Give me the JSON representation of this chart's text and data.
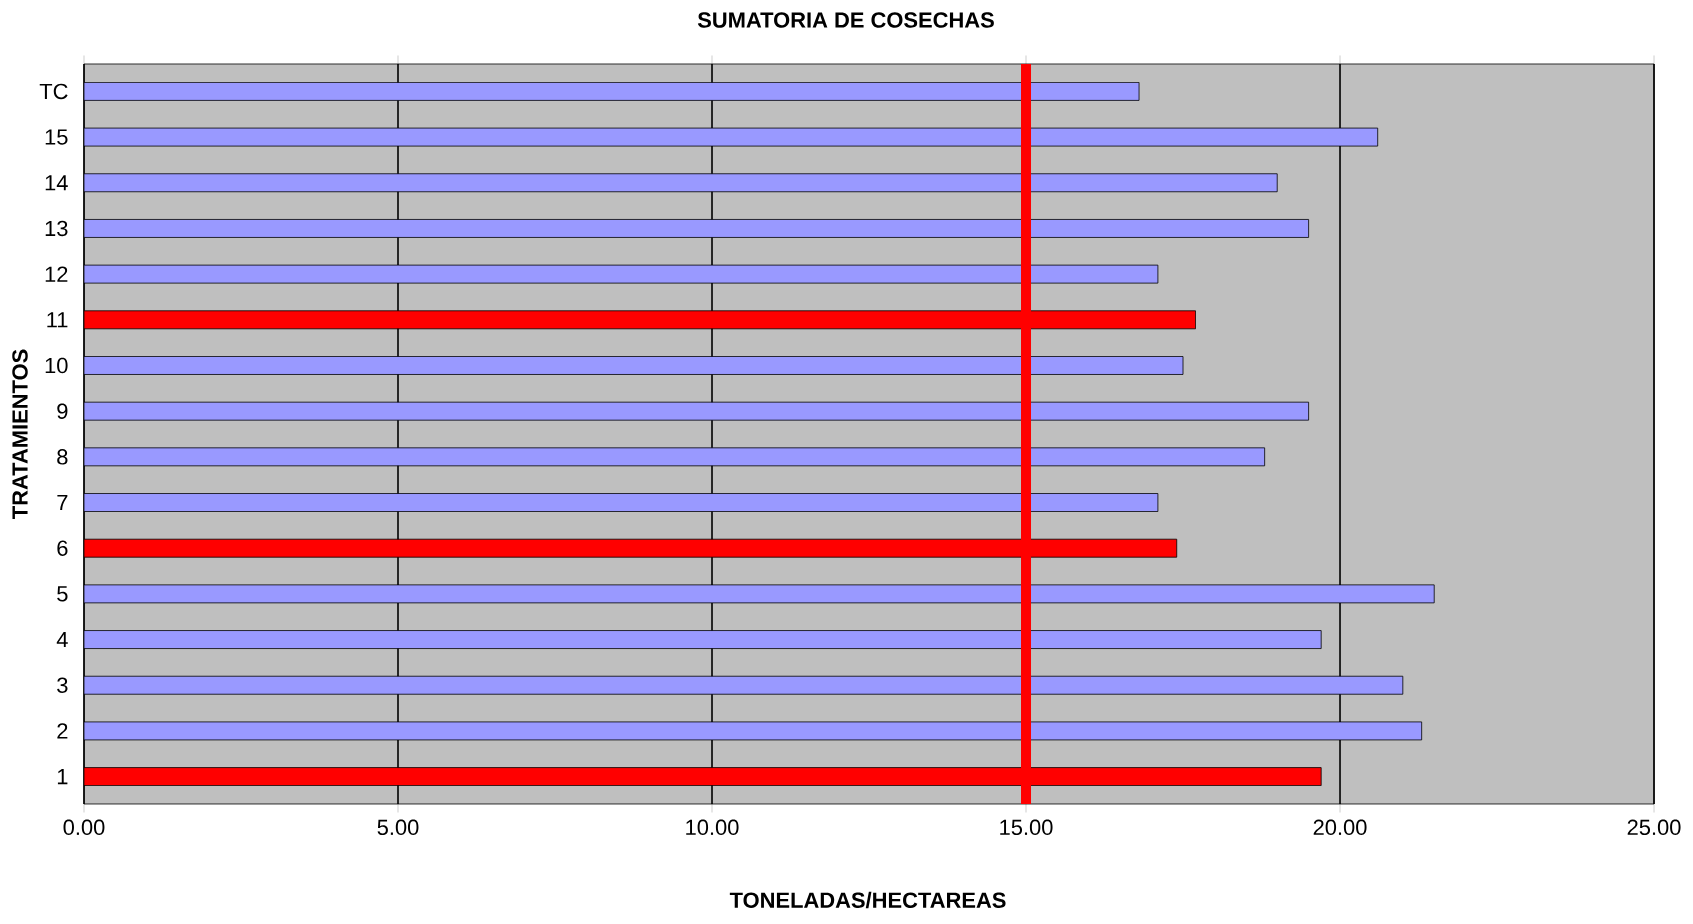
{
  "chart_data": {
    "type": "bar",
    "orientation": "horizontal",
    "title": "SUMATORIA DE COSECHAS",
    "xlabel": "TONELADAS/HECTAREAS",
    "ylabel": "TRATAMIENTOS",
    "categories": [
      "TC",
      "15",
      "14",
      "13",
      "12",
      "11",
      "10",
      "9",
      "8",
      "7",
      "6",
      "5",
      "4",
      "3",
      "2",
      "1"
    ],
    "values": [
      16.8,
      20.6,
      19.0,
      19.5,
      17.1,
      17.7,
      17.5,
      19.5,
      18.8,
      17.1,
      17.4,
      21.5,
      19.7,
      21.0,
      21.3,
      19.7
    ],
    "colors": [
      "#9999ff",
      "#9999ff",
      "#9999ff",
      "#9999ff",
      "#9999ff",
      "#ff0000",
      "#9999ff",
      "#9999ff",
      "#9999ff",
      "#9999ff",
      "#ff0000",
      "#9999ff",
      "#9999ff",
      "#9999ff",
      "#9999ff",
      "#ff0000"
    ],
    "xlim": [
      0,
      25
    ],
    "xticks": [
      {
        "value": 0,
        "label": "0.00"
      },
      {
        "value": 5,
        "label": "5.00"
      },
      {
        "value": 10,
        "label": "10.00"
      },
      {
        "value": 15,
        "label": "15.00"
      },
      {
        "value": 20,
        "label": "20.00"
      },
      {
        "value": 25,
        "label": "25.00"
      }
    ],
    "grid": "x",
    "ref_lines": [
      {
        "axis": "x",
        "value": 15,
        "color": "#ff0000"
      }
    ]
  }
}
